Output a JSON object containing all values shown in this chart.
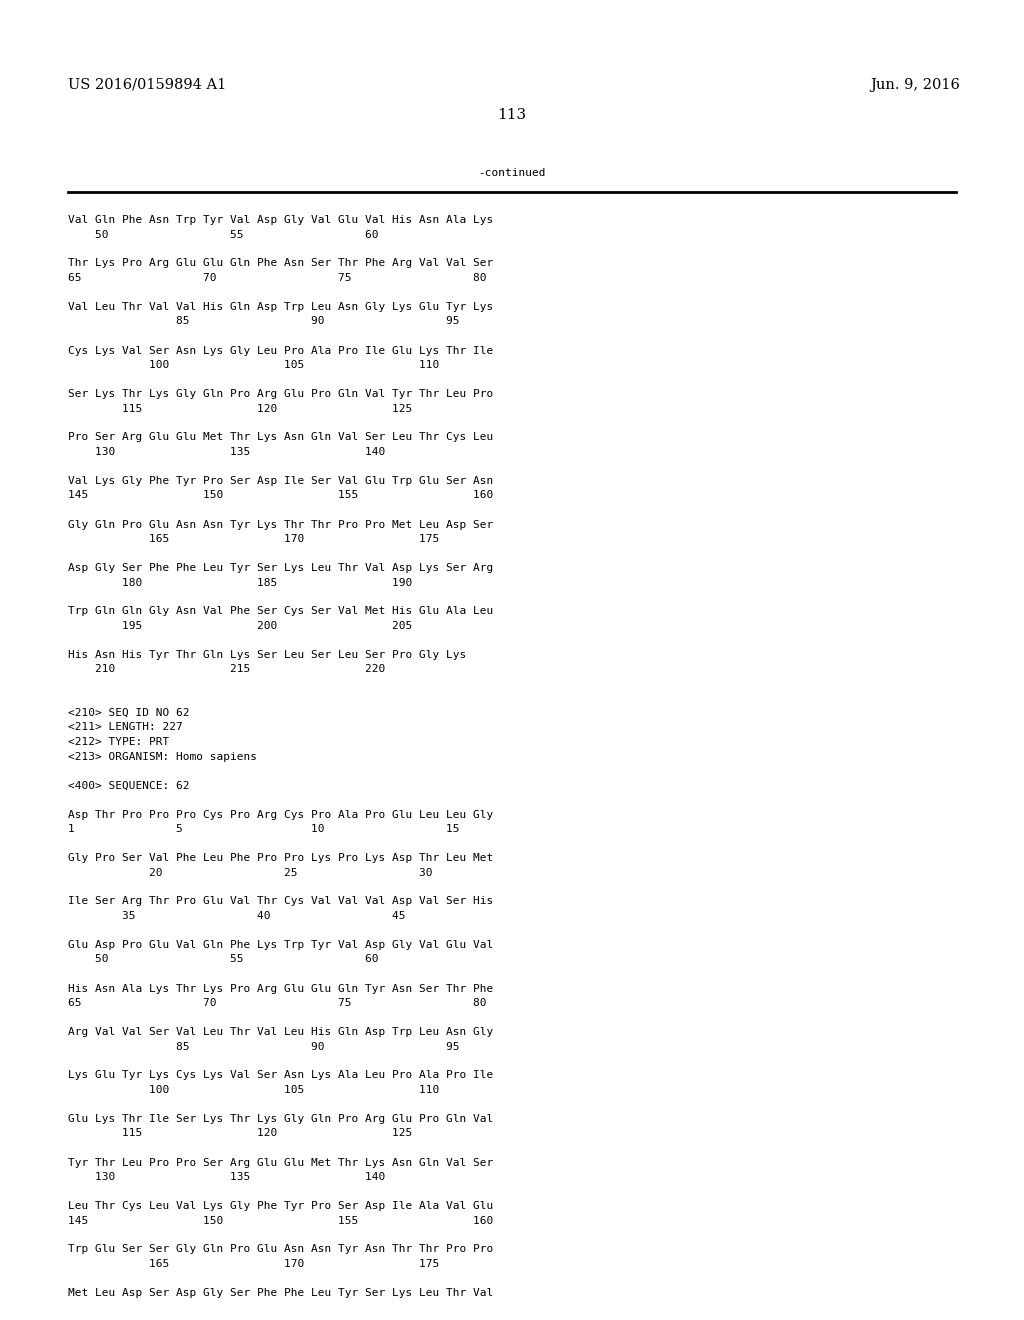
{
  "background_color": "#ffffff",
  "top_left_text": "US 2016/0159894 A1",
  "top_right_text": "Jun. 9, 2016",
  "page_number": "113",
  "continued_text": "-continued",
  "font_size_header": 10.5,
  "font_size_body": 8.0,
  "font_size_page": 11,
  "body_lines": [
    "Val Gln Phe Asn Trp Tyr Val Asp Gly Val Glu Val His Asn Ala Lys",
    "    50                  55                  60",
    "",
    "Thr Lys Pro Arg Glu Glu Gln Phe Asn Ser Thr Phe Arg Val Val Ser",
    "65                  70                  75                  80",
    "",
    "Val Leu Thr Val Val His Gln Asp Trp Leu Asn Gly Lys Glu Tyr Lys",
    "                85                  90                  95",
    "",
    "Cys Lys Val Ser Asn Lys Gly Leu Pro Ala Pro Ile Glu Lys Thr Ile",
    "            100                 105                 110",
    "",
    "Ser Lys Thr Lys Gly Gln Pro Arg Glu Pro Gln Val Tyr Thr Leu Pro",
    "        115                 120                 125",
    "",
    "Pro Ser Arg Glu Glu Met Thr Lys Asn Gln Val Ser Leu Thr Cys Leu",
    "    130                 135                 140",
    "",
    "Val Lys Gly Phe Tyr Pro Ser Asp Ile Ser Val Glu Trp Glu Ser Asn",
    "145                 150                 155                 160",
    "",
    "Gly Gln Pro Glu Asn Asn Tyr Lys Thr Thr Pro Pro Met Leu Asp Ser",
    "            165                 170                 175",
    "",
    "Asp Gly Ser Phe Phe Leu Tyr Ser Lys Leu Thr Val Asp Lys Ser Arg",
    "        180                 185                 190",
    "",
    "Trp Gln Gln Gly Asn Val Phe Ser Cys Ser Val Met His Glu Ala Leu",
    "        195                 200                 205",
    "",
    "His Asn His Tyr Thr Gln Lys Ser Leu Ser Leu Ser Pro Gly Lys",
    "    210                 215                 220",
    "",
    "",
    "<210> SEQ ID NO 62",
    "<211> LENGTH: 227",
    "<212> TYPE: PRT",
    "<213> ORGANISM: Homo sapiens",
    "",
    "<400> SEQUENCE: 62",
    "",
    "Asp Thr Pro Pro Pro Cys Pro Arg Cys Pro Ala Pro Glu Leu Leu Gly",
    "1               5                   10                  15",
    "",
    "Gly Pro Ser Val Phe Leu Phe Pro Pro Lys Pro Lys Asp Thr Leu Met",
    "            20                  25                  30",
    "",
    "Ile Ser Arg Thr Pro Glu Val Thr Cys Val Val Val Asp Val Ser His",
    "        35                  40                  45",
    "",
    "Glu Asp Pro Glu Val Gln Phe Lys Trp Tyr Val Asp Gly Val Glu Val",
    "    50                  55                  60",
    "",
    "His Asn Ala Lys Thr Lys Pro Arg Glu Glu Gln Tyr Asn Ser Thr Phe",
    "65                  70                  75                  80",
    "",
    "Arg Val Val Ser Val Leu Thr Val Leu His Gln Asp Trp Leu Asn Gly",
    "                85                  90                  95",
    "",
    "Lys Glu Tyr Lys Cys Lys Val Ser Asn Lys Ala Leu Pro Ala Pro Ile",
    "            100                 105                 110",
    "",
    "Glu Lys Thr Ile Ser Lys Thr Lys Gly Gln Pro Arg Glu Pro Gln Val",
    "        115                 120                 125",
    "",
    "Tyr Thr Leu Pro Pro Ser Arg Glu Glu Met Thr Lys Asn Gln Val Ser",
    "    130                 135                 140",
    "",
    "Leu Thr Cys Leu Val Lys Gly Phe Tyr Pro Ser Asp Ile Ala Val Glu",
    "145                 150                 155                 160",
    "",
    "Trp Glu Ser Ser Gly Gln Pro Glu Asn Asn Tyr Asn Thr Thr Pro Pro",
    "            165                 170                 175",
    "",
    "Met Leu Asp Ser Asp Gly Ser Phe Phe Leu Tyr Ser Lys Leu Thr Val"
  ]
}
